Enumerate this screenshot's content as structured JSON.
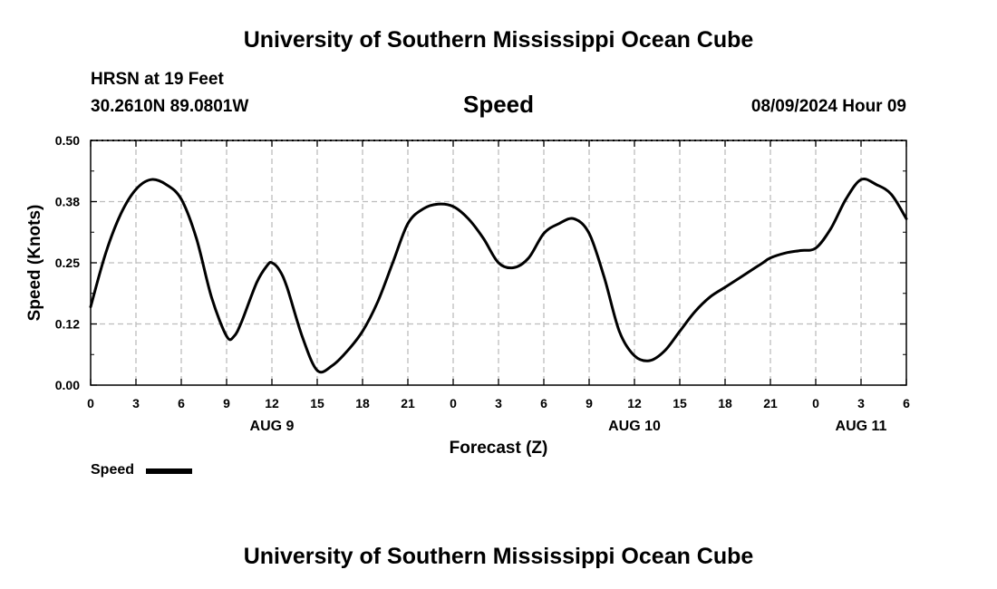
{
  "header": {
    "title": "University of Southern Mississippi Ocean Cube",
    "station": "HRSN at 19 Feet",
    "coords": "30.2610N  89.0801W",
    "chart_title": "Speed",
    "datetime": "08/09/2024 Hour 09"
  },
  "footer": {
    "title": "University of Southern Mississippi Ocean Cube"
  },
  "legend": {
    "label": "Speed",
    "color": "#000000"
  },
  "chart_data": {
    "type": "line",
    "title": "Speed",
    "xlabel": "Forecast (Z)",
    "ylabel": "Speed (Knots)",
    "xlim": [
      0,
      54
    ],
    "ylim": [
      0,
      0.5
    ],
    "x_ticks": [
      "0",
      "3",
      "6",
      "9",
      "12",
      "15",
      "18",
      "21",
      "0",
      "3",
      "6",
      "9",
      "12",
      "15",
      "18",
      "21",
      "0",
      "3",
      "6"
    ],
    "y_ticks": [
      "0.00",
      "0.12",
      "0.25",
      "0.38",
      "0.50"
    ],
    "date_labels": [
      {
        "text": "AUG 9",
        "x": 12
      },
      {
        "text": "AUG 10",
        "x": 36
      },
      {
        "text": "AUG 11",
        "x": 51
      }
    ],
    "grid": true,
    "legend": "bottom-left",
    "series": [
      {
        "name": "Speed",
        "x": [
          0,
          1,
          2,
          3,
          4,
          5,
          6,
          7,
          8,
          9,
          9.5,
          10,
          11,
          11.7,
          12,
          12.5,
          13,
          14,
          15,
          16,
          17,
          18,
          19,
          20,
          21,
          22,
          23,
          24,
          25,
          26,
          27,
          28,
          29,
          30,
          31,
          32,
          33,
          34,
          35,
          36,
          37,
          38,
          39,
          40,
          41,
          42,
          43,
          44,
          44.5,
          45,
          46,
          47,
          48,
          49,
          50,
          51,
          52,
          53,
          54
        ],
        "values": [
          0.16,
          0.27,
          0.35,
          0.4,
          0.42,
          0.41,
          0.38,
          0.3,
          0.18,
          0.1,
          0.1,
          0.13,
          0.21,
          0.245,
          0.25,
          0.235,
          0.2,
          0.1,
          0.03,
          0.04,
          0.07,
          0.11,
          0.17,
          0.25,
          0.33,
          0.36,
          0.37,
          0.365,
          0.34,
          0.3,
          0.25,
          0.24,
          0.26,
          0.31,
          0.33,
          0.34,
          0.31,
          0.22,
          0.11,
          0.06,
          0.05,
          0.07,
          0.11,
          0.15,
          0.18,
          0.2,
          0.22,
          0.24,
          0.25,
          0.26,
          0.27,
          0.275,
          0.28,
          0.32,
          0.38,
          0.42,
          0.41,
          0.39,
          0.34
        ]
      }
    ]
  }
}
